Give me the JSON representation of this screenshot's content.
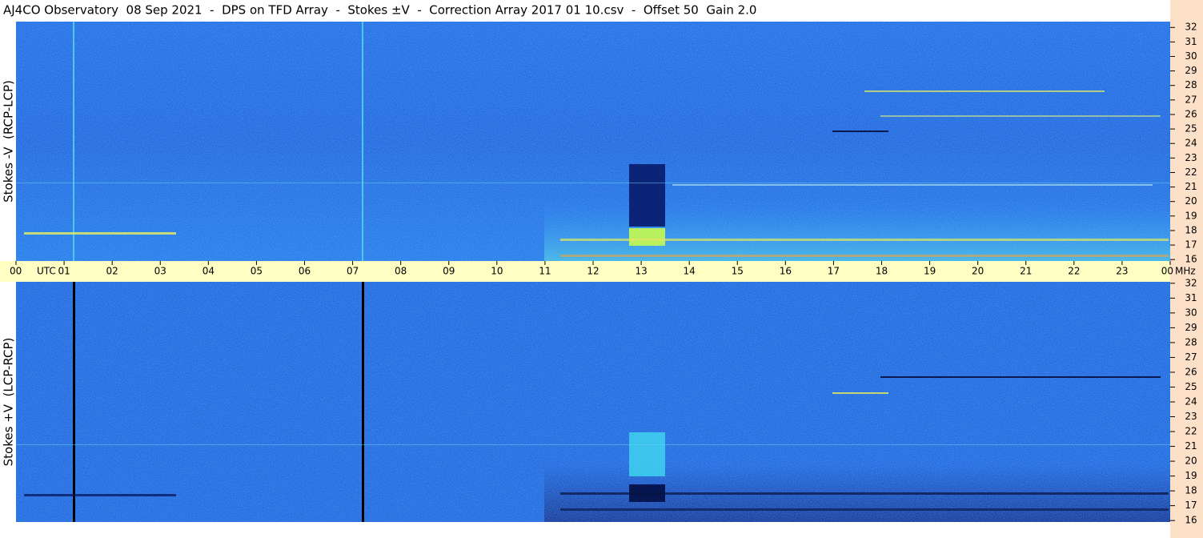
{
  "chart_data": {
    "type": "heatmap",
    "title": "AJ4CO Observatory  08 Sep 2021  -  DPS on TFD Array  -  Stokes ±V  -  Correction Array 2017 01 10.csv  -  Offset 50  Gain 2.0",
    "xlim": [
      0,
      24
    ],
    "xticks": [
      {
        "value": 0,
        "label": "00"
      },
      {
        "value": 1,
        "label": "01"
      },
      {
        "value": 2,
        "label": "02"
      },
      {
        "value": 3,
        "label": "03"
      },
      {
        "value": 4,
        "label": "04"
      },
      {
        "value": 5,
        "label": "05"
      },
      {
        "value": 6,
        "label": "06"
      },
      {
        "value": 7,
        "label": "07"
      },
      {
        "value": 8,
        "label": "08"
      },
      {
        "value": 9,
        "label": "09"
      },
      {
        "value": 10,
        "label": "10"
      },
      {
        "value": 11,
        "label": "11"
      },
      {
        "value": 12,
        "label": "12"
      },
      {
        "value": 13,
        "label": "13"
      },
      {
        "value": 14,
        "label": "14"
      },
      {
        "value": 15,
        "label": "15"
      },
      {
        "value": 16,
        "label": "16"
      },
      {
        "value": 17,
        "label": "17"
      },
      {
        "value": 18,
        "label": "18"
      },
      {
        "value": 19,
        "label": "19"
      },
      {
        "value": 20,
        "label": "20"
      },
      {
        "value": 21,
        "label": "21"
      },
      {
        "value": 22,
        "label": "22"
      },
      {
        "value": 23,
        "label": "23"
      },
      {
        "value": 24,
        "label": "00"
      }
    ],
    "x_unit": "UTC",
    "y_unit": "MHz",
    "panels": [
      {
        "ylabel": "Stokes -V  (RCP-LCP)",
        "ylim": [
          15.9,
          32.4
        ],
        "yticks": [
          16,
          17,
          18,
          19,
          20,
          21,
          22,
          23,
          24,
          25,
          26,
          27,
          28,
          29,
          30,
          31,
          32
        ]
      },
      {
        "ylabel": "Stokes +V  (LCP-RCP)",
        "ylim": [
          15.9,
          32.1
        ],
        "yticks": [
          16,
          17,
          18,
          19,
          20,
          21,
          22,
          23,
          24,
          25,
          26,
          27,
          28,
          29,
          30,
          31,
          32
        ]
      }
    ]
  }
}
